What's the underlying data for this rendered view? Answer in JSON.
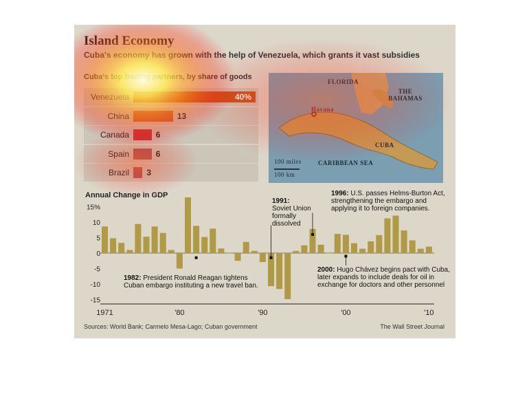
{
  "header": {
    "title": "Island Economy",
    "subtitle": "Cuba's economy has grown with the help of Venezuela, which grants it vast subsidies"
  },
  "footer": {
    "sources": "Sources: World Bank; Carmelo Mesa-Lago; Cuban government",
    "credit": "The Wall Street Journal"
  },
  "map": {
    "labels": [
      "FLORIDA",
      "THE BAHAMAS",
      "Havana",
      "CUBA",
      "CARIBBEAN SEA",
      "100 miles",
      "100 km"
    ]
  },
  "annotations": {
    "a1982": {
      "year": "1982:",
      "text": "President Ronald Reagan tightens",
      "text2": "Cuban embargo instituting a new travel ban."
    },
    "a1991": {
      "year": "1991:",
      "text": "Soviet Union",
      "text2": "formally",
      "text3": "dissolved"
    },
    "a1996": {
      "year": "1996:",
      "text": "U.S. passes Helms-Burton Act,",
      "text2": "strengthening the embargo and",
      "text3": "applying it to foreign companies."
    },
    "a2000": {
      "year": "2000:",
      "text": "Hugo Chávez begins pact with Cuba,",
      "text2": "later expands to include deals for oil in",
      "text3": "exchange for doctors and other personnel"
    }
  },
  "colors": {
    "gdp_bar": "#b19a45",
    "trade_bar": "#b85a5a",
    "panel": "#dcd7c9",
    "heat_core": "#ffff99",
    "heat_outer": "#ff3300"
  },
  "chart_data": [
    {
      "type": "bar",
      "title": "Cuba's top trading partners, by share of goods",
      "categories": [
        "Venezuela",
        "China",
        "Canada",
        "Spain",
        "Brazil"
      ],
      "values": [
        40,
        13,
        6,
        6,
        3
      ],
      "value_labels": [
        "40%",
        "13",
        "6",
        "6",
        "3"
      ],
      "orientation": "horizontal"
    },
    {
      "type": "bar",
      "title": "Annual Change in GDP",
      "x": [
        1971,
        1972,
        1973,
        1974,
        1975,
        1976,
        1977,
        1978,
        1979,
        1980,
        1981,
        1982,
        1983,
        1984,
        1985,
        1986,
        1987,
        1988,
        1989,
        1990,
        1991,
        1992,
        1993,
        1994,
        1995,
        1996,
        1997,
        1998,
        1999,
        2000,
        2001,
        2002,
        2003,
        2004,
        2005,
        2006,
        2007,
        2008,
        2009,
        2010
      ],
      "values": [
        8.6,
        4.8,
        3.3,
        1.0,
        9.4,
        5.3,
        8.6,
        6.5,
        1.0,
        -5.0,
        18.0,
        8.8,
        5.2,
        7.9,
        1.5,
        0,
        -2.5,
        3.6,
        0.7,
        -2.9,
        -10.7,
        -11.6,
        -14.9,
        0.7,
        2.5,
        7.8,
        2.7,
        0,
        6.2,
        5.9,
        3.2,
        1.4,
        3.8,
        5.8,
        11.2,
        12.1,
        7.3,
        4.1,
        1.4,
        2.1
      ],
      "xtick_labels": [
        "1971",
        "'80",
        "'90",
        "'00",
        "'10"
      ],
      "ytick_labels": [
        "15%",
        "10",
        "5",
        "0",
        "-5",
        "-10",
        "-15"
      ],
      "ylim": [
        -15,
        20
      ],
      "grid": false
    }
  ]
}
